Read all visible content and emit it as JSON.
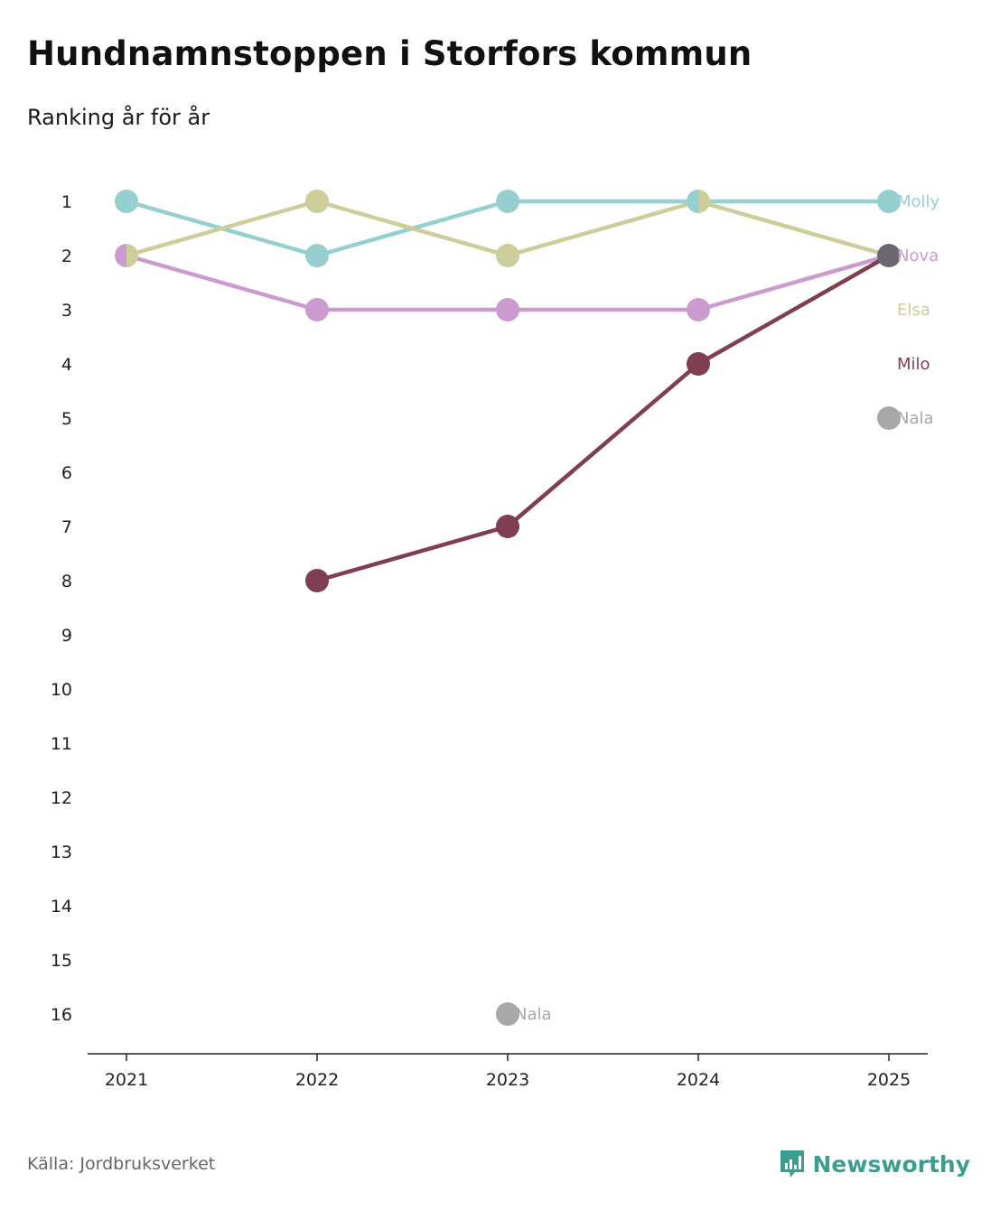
{
  "title": "Hundnamnstoppen i Storfors kommun",
  "subtitle": "Ranking år för år",
  "source": "Källa: Jordbruksverket",
  "brand": "Newsworthy",
  "colors": {
    "Molly": "#96cfd0",
    "Elsa": "#cdcd9a",
    "Nova": "#cb9acf",
    "Milo": "#7f3e52",
    "Nala": "#a8a8a8",
    "tie_2025": "#6b6870",
    "axis": "#222222",
    "brand": "#3c9e8f"
  },
  "chart_data": {
    "type": "line",
    "title": "Hundnamnstoppen i Storfors kommun",
    "subtitle": "Ranking år för år",
    "xlabel": "",
    "ylabel": "",
    "x": [
      "2021",
      "2022",
      "2023",
      "2024",
      "2025"
    ],
    "y_ticks": [
      "1",
      "2",
      "3",
      "4",
      "5",
      "6",
      "7",
      "8",
      "9",
      "10",
      "11",
      "12",
      "13",
      "14",
      "15",
      "16"
    ],
    "ylim": [
      1,
      16
    ],
    "y_inverted": true,
    "series": [
      {
        "name": "Molly",
        "values": [
          1,
          2,
          1,
          1,
          1
        ],
        "end_label": "Molly"
      },
      {
        "name": "Elsa",
        "values": [
          2,
          1,
          2,
          1,
          2
        ],
        "end_label": "Elsa"
      },
      {
        "name": "Nova",
        "values": [
          2,
          3,
          3,
          3,
          2
        ],
        "end_label": "Nova"
      },
      {
        "name": "Milo",
        "values": [
          null,
          8,
          7,
          4,
          2
        ],
        "end_label": "Milo"
      },
      {
        "name": "Nala",
        "values": [
          null,
          null,
          16,
          null,
          5
        ],
        "end_label": "Nala",
        "point_labels": [
          "",
          "",
          "Nala",
          "",
          ""
        ]
      }
    ]
  }
}
